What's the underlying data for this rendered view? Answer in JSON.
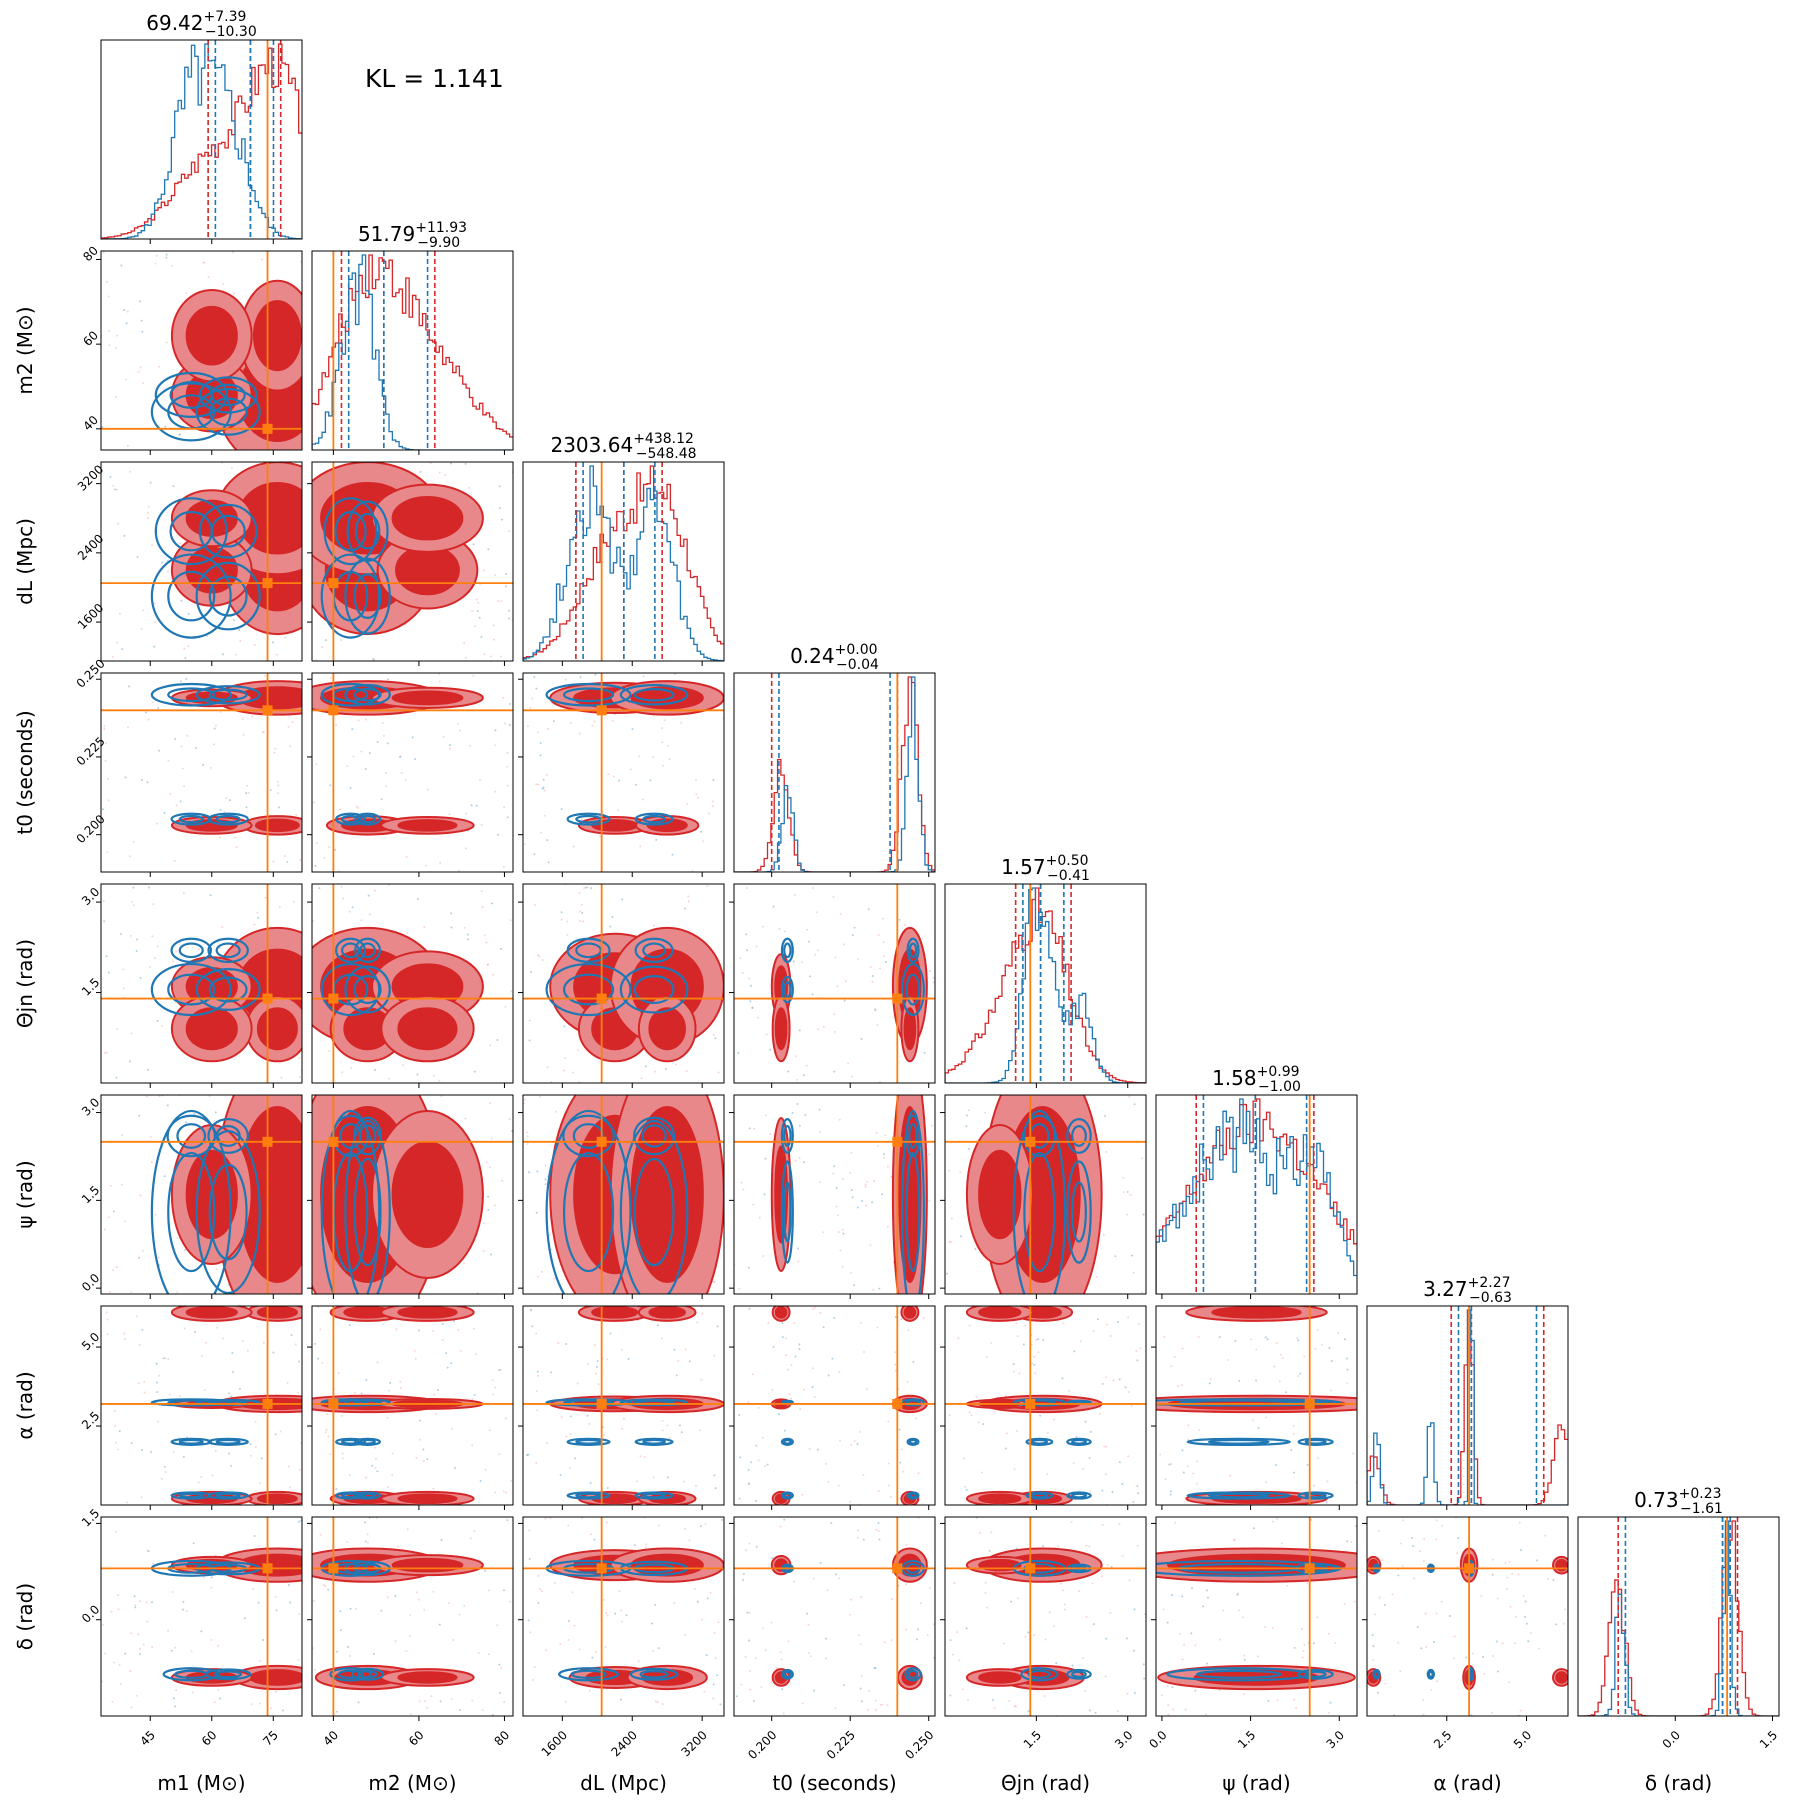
{
  "annotation": "KL = 1.141",
  "colors": {
    "truth": "#ff7f0e",
    "posterior_a": "#d62728",
    "posterior_a_light": "#e8888a",
    "posterior_b": "#1f77b4",
    "axes": "#000000"
  },
  "chart_data": {
    "type": "corner",
    "parameters": [
      {
        "key": "m1",
        "label": "m1 (M⊙)",
        "unit": "M⊙",
        "range": [
          33,
          82
        ],
        "ticks": [
          45,
          60,
          75
        ],
        "tick_labels": [
          "45",
          "60",
          "75"
        ],
        "truth": 73.6,
        "median": 69.42,
        "plus": 7.39,
        "minus": 10.3,
        "title": "69.42 +7.39 −10.30"
      },
      {
        "key": "m2",
        "label": "m2 (M⊙)",
        "unit": "M⊙",
        "range": [
          35,
          82
        ],
        "ticks": [
          40,
          60,
          80
        ],
        "tick_labels": [
          "40",
          "60",
          "80"
        ],
        "truth": 40.0,
        "median": 51.79,
        "plus": 11.93,
        "minus": 9.9,
        "title": "51.79 +11.93 −9.90"
      },
      {
        "key": "dL",
        "label": "dL (Mpc)",
        "unit": "Mpc",
        "range": [
          1150,
          3450
        ],
        "ticks": [
          1600,
          2400,
          3200
        ],
        "tick_labels": [
          "1600",
          "2400",
          "3200"
        ],
        "truth": 2050,
        "median": 2303.64,
        "plus": 438.12,
        "minus": 548.48,
        "title": "2303.64 +438.12 −548.48"
      },
      {
        "key": "t0",
        "label": "t0 (seconds)",
        "unit": "seconds",
        "range": [
          0.188,
          0.252
        ],
        "ticks": [
          0.2,
          0.225,
          0.25
        ],
        "tick_labels": [
          "0.200",
          "0.225",
          "0.250"
        ],
        "truth": 0.24,
        "median": 0.24,
        "plus": 0.0,
        "minus": 0.04,
        "title": "0.24 +0.00 −0.04"
      },
      {
        "key": "theta",
        "label": "Θjn (rad)",
        "unit": "rad",
        "range": [
          0.0,
          3.3
        ],
        "ticks": [
          1.5,
          3.0
        ],
        "tick_labels": [
          "1.5",
          "3.0"
        ],
        "truth": 1.4,
        "median": 1.57,
        "plus": 0.5,
        "minus": 0.41,
        "title": "1.57 +0.50 −0.41"
      },
      {
        "key": "psi",
        "label": "ψ (rad)",
        "unit": "rad",
        "range": [
          -0.1,
          3.3
        ],
        "ticks": [
          0.0,
          1.5,
          3.0
        ],
        "tick_labels": [
          "0.0",
          "1.5",
          "3.0"
        ],
        "truth": 2.5,
        "median": 1.58,
        "plus": 0.99,
        "minus": 1.0,
        "title": "1.58 +0.99 −1.00"
      },
      {
        "key": "alpha",
        "label": "α (rad)",
        "unit": "rad",
        "range": [
          0.0,
          6.3
        ],
        "ticks": [
          2.5,
          5.0
        ],
        "tick_labels": [
          "2.5",
          "5.0"
        ],
        "truth": 3.2,
        "median": 3.27,
        "plus": 2.27,
        "minus": 0.63,
        "title": "3.27 +2.27 −0.63"
      },
      {
        "key": "delta",
        "label": "δ (rad)",
        "unit": "rad",
        "range": [
          -1.5,
          1.6
        ],
        "ticks": [
          0.0,
          1.5
        ],
        "tick_labels": [
          "0.0",
          "1.5"
        ],
        "truth": 0.8,
        "median": 0.73,
        "plus": 0.23,
        "minus": 1.61,
        "title": "0.73 +0.23 −1.61"
      }
    ],
    "series": [
      {
        "color": "posterior_a",
        "style": "filled 2D contours + step histograms"
      },
      {
        "color": "posterior_b",
        "style": "line 2D contours + step histograms"
      }
    ],
    "truth_color": "truth",
    "grid": false
  }
}
